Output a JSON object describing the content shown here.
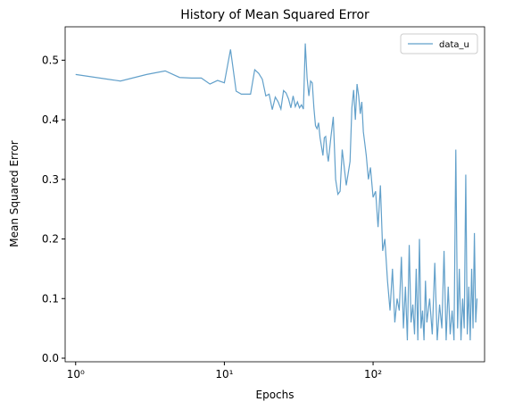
{
  "chart_data": {
    "type": "line",
    "title": "History of Mean Squared Error",
    "xlabel": "Epochs",
    "ylabel": "Mean Squared Error",
    "xscale": "log",
    "grid": false,
    "legend": "upper right",
    "xlim": [
      0.85,
      562
    ],
    "ylim": [
      -0.006,
      0.556
    ],
    "xticks": [
      {
        "value": 1,
        "label": "10⁰"
      },
      {
        "value": 10,
        "label": "10¹"
      },
      {
        "value": 100,
        "label": "10²"
      }
    ],
    "yticks": [
      {
        "value": 0,
        "label": "0.0"
      },
      0.1,
      0.2,
      0.3,
      0.4,
      0.5
    ],
    "x": [
      1,
      2,
      3,
      4,
      5,
      6,
      7,
      8,
      9,
      10,
      11,
      12,
      13,
      14,
      15,
      16,
      17,
      18,
      19,
      20,
      21,
      22,
      23,
      24,
      25,
      26,
      27,
      28,
      29,
      30,
      31,
      32,
      33,
      34,
      35,
      36,
      37,
      38,
      39,
      40,
      41,
      42,
      43,
      44,
      45,
      46,
      47,
      48,
      49,
      50,
      52,
      54,
      56,
      58,
      60,
      62,
      64,
      66,
      68,
      70,
      72,
      74,
      76,
      78,
      80,
      82,
      84,
      86,
      88,
      90,
      93,
      96,
      100,
      104,
      108,
      112,
      116,
      120,
      125,
      130,
      135,
      140,
      145,
      150,
      155,
      160,
      165,
      170,
      175,
      180,
      185,
      190,
      195,
      200,
      205,
      210,
      215,
      220,
      225,
      230,
      240,
      250,
      260,
      270,
      280,
      290,
      300,
      310,
      320,
      330,
      340,
      350,
      360,
      370,
      380,
      390,
      400,
      410,
      420,
      430,
      440,
      450,
      460,
      470,
      480,
      490,
      500
    ],
    "series": [
      {
        "name": "data_u",
        "color": "#1f77b4",
        "values": [
          0.476,
          0.465,
          0.476,
          0.482,
          0.471,
          0.47,
          0.47,
          0.46,
          0.466,
          0.462,
          0.518,
          0.448,
          0.443,
          0.443,
          0.443,
          0.484,
          0.478,
          0.468,
          0.44,
          0.443,
          0.417,
          0.438,
          0.43,
          0.418,
          0.449,
          0.445,
          0.435,
          0.42,
          0.44,
          0.422,
          0.43,
          0.42,
          0.425,
          0.418,
          0.528,
          0.47,
          0.44,
          0.465,
          0.462,
          0.42,
          0.39,
          0.385,
          0.395,
          0.37,
          0.355,
          0.34,
          0.37,
          0.372,
          0.345,
          0.33,
          0.37,
          0.405,
          0.3,
          0.275,
          0.28,
          0.35,
          0.32,
          0.29,
          0.31,
          0.33,
          0.42,
          0.45,
          0.4,
          0.46,
          0.44,
          0.41,
          0.43,
          0.38,
          0.36,
          0.34,
          0.3,
          0.32,
          0.27,
          0.28,
          0.22,
          0.29,
          0.18,
          0.2,
          0.13,
          0.08,
          0.15,
          0.06,
          0.1,
          0.08,
          0.17,
          0.05,
          0.12,
          0.03,
          0.19,
          0.06,
          0.09,
          0.04,
          0.15,
          0.03,
          0.2,
          0.05,
          0.08,
          0.03,
          0.13,
          0.06,
          0.1,
          0.04,
          0.16,
          0.03,
          0.09,
          0.05,
          0.18,
          0.03,
          0.12,
          0.04,
          0.08,
          0.03,
          0.35,
          0.05,
          0.15,
          0.03,
          0.1,
          0.05,
          0.308,
          0.04,
          0.12,
          0.03,
          0.15,
          0.05,
          0.21,
          0.06,
          0.1
        ]
      }
    ]
  }
}
